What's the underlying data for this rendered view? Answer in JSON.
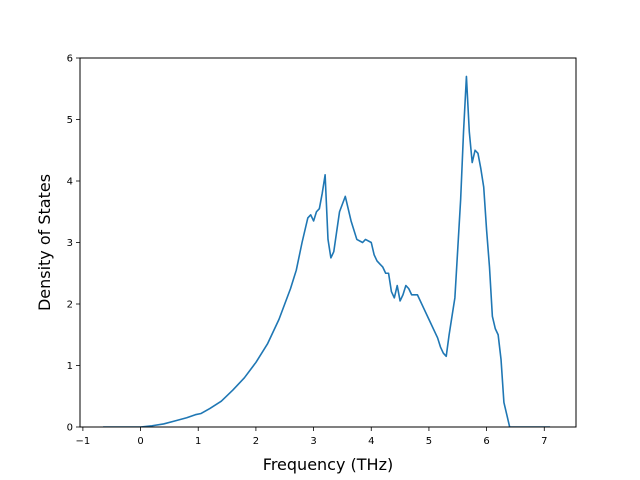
{
  "chart_data": {
    "type": "line",
    "title": "",
    "xlabel": "Frequency (THz)",
    "ylabel": "Density of States",
    "xlim": [
      -1.05,
      7.55
    ],
    "ylim": [
      0,
      6
    ],
    "xticks": [
      -1,
      0,
      1,
      2,
      3,
      4,
      5,
      6,
      7
    ],
    "yticks": [
      0,
      1,
      2,
      3,
      4,
      5,
      6
    ],
    "grid": false,
    "legend": "none",
    "series": [
      {
        "color": "#1f77b4",
        "x": [
          -0.65,
          0.0,
          0.2,
          0.4,
          0.6,
          0.8,
          0.95,
          1.05,
          1.2,
          1.4,
          1.6,
          1.8,
          2.0,
          2.2,
          2.4,
          2.5,
          2.6,
          2.65,
          2.7,
          2.8,
          2.9,
          2.95,
          3.0,
          3.05,
          3.1,
          3.15,
          3.2,
          3.25,
          3.3,
          3.35,
          3.45,
          3.55,
          3.65,
          3.75,
          3.85,
          3.9,
          4.0,
          4.05,
          4.1,
          4.15,
          4.2,
          4.25,
          4.3,
          4.35,
          4.4,
          4.45,
          4.5,
          4.55,
          4.6,
          4.65,
          4.7,
          4.8,
          4.9,
          5.0,
          5.1,
          5.15,
          5.2,
          5.25,
          5.3,
          5.35,
          5.4,
          5.45,
          5.5,
          5.55,
          5.6,
          5.65,
          5.7,
          5.75,
          5.8,
          5.85,
          5.9,
          5.95,
          6.0,
          6.05,
          6.1,
          6.15,
          6.2,
          6.25,
          6.3,
          6.35,
          6.4,
          6.45,
          6.5,
          6.55,
          6.7,
          6.9,
          7.1
        ],
        "y": [
          0.0,
          0.0,
          0.02,
          0.05,
          0.1,
          0.15,
          0.2,
          0.22,
          0.3,
          0.42,
          0.6,
          0.8,
          1.05,
          1.35,
          1.75,
          2.0,
          2.25,
          2.4,
          2.55,
          3.0,
          3.4,
          3.45,
          3.35,
          3.5,
          3.55,
          3.8,
          4.1,
          3.05,
          2.75,
          2.85,
          3.5,
          3.75,
          3.35,
          3.05,
          3.0,
          3.05,
          3.0,
          2.8,
          2.7,
          2.65,
          2.6,
          2.5,
          2.5,
          2.2,
          2.1,
          2.3,
          2.05,
          2.15,
          2.3,
          2.25,
          2.15,
          2.15,
          1.95,
          1.75,
          1.55,
          1.45,
          1.3,
          1.2,
          1.15,
          1.5,
          1.8,
          2.1,
          2.9,
          3.7,
          4.8,
          5.7,
          4.8,
          4.3,
          4.5,
          4.45,
          4.2,
          3.9,
          3.2,
          2.6,
          1.8,
          1.6,
          1.5,
          1.1,
          0.4,
          0.2,
          0.0,
          0.0,
          0.0,
          0.0,
          0.0,
          0.0,
          0.0
        ]
      }
    ]
  }
}
